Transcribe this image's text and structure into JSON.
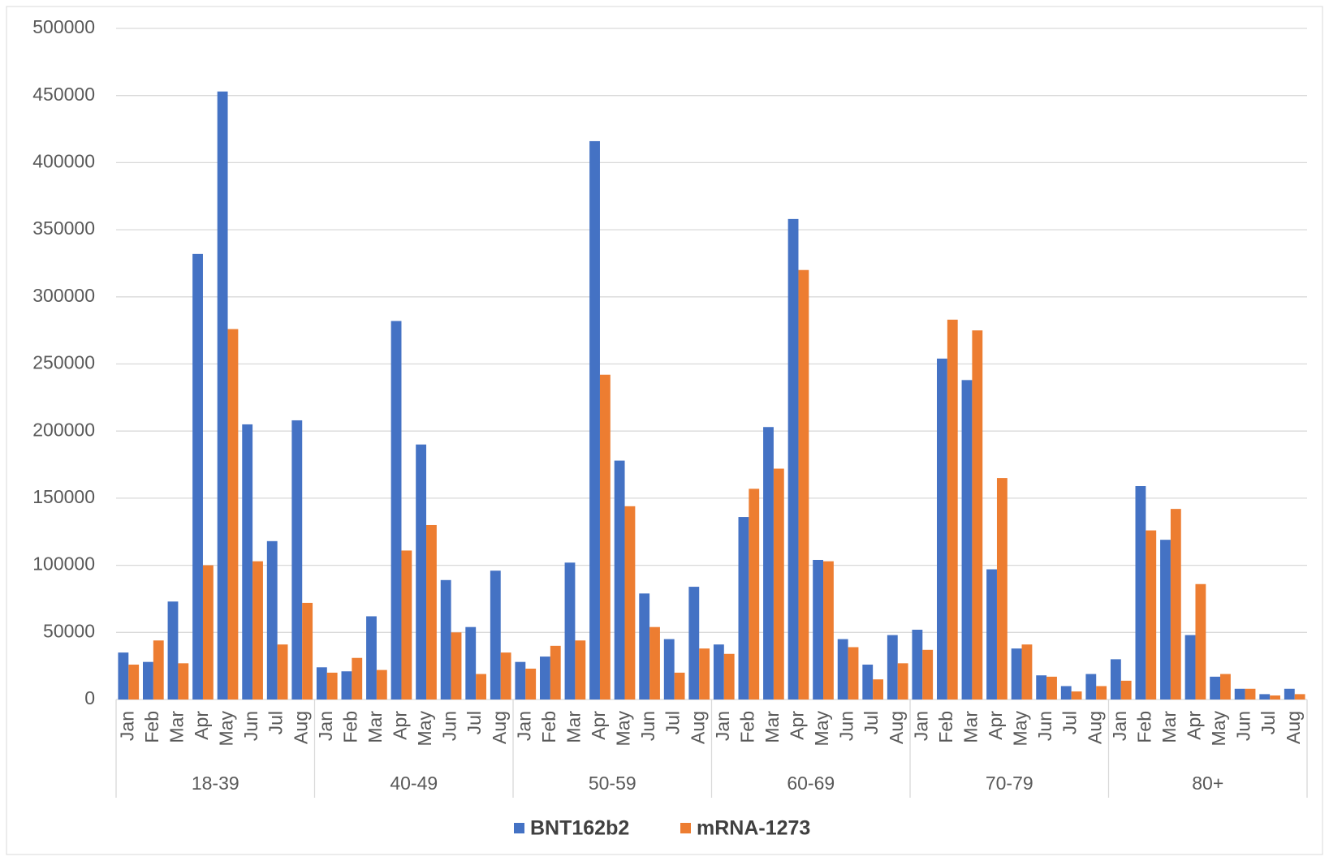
{
  "chart_data": {
    "type": "bar",
    "categories": [
      "Jan",
      "Feb",
      "Mar",
      "Apr",
      "May",
      "Jun",
      "Jul",
      "Aug",
      "Jan",
      "Feb",
      "Mar",
      "Apr",
      "May",
      "Jun",
      "Jul",
      "Aug",
      "Jan",
      "Feb",
      "Mar",
      "Apr",
      "May",
      "Jun",
      "Jul",
      "Aug",
      "Jan",
      "Feb",
      "Mar",
      "Apr",
      "May",
      "Jun",
      "Jul",
      "Aug",
      "Jan",
      "Feb",
      "Mar",
      "Apr",
      "May",
      "Jun",
      "Jul",
      "Aug",
      "Jan",
      "Feb",
      "Mar",
      "Apr",
      "May",
      "Jun",
      "Jul",
      "Aug"
    ],
    "groups": [
      "18-39",
      "40-49",
      "50-59",
      "60-69",
      "70-79",
      "80+"
    ],
    "series": [
      {
        "name": "BNT162b2",
        "color": "#4472c4",
        "values": [
          35000,
          28000,
          73000,
          332000,
          453000,
          205000,
          118000,
          208000,
          24000,
          21000,
          62000,
          282000,
          190000,
          89000,
          54000,
          96000,
          28000,
          32000,
          102000,
          416000,
          178000,
          79000,
          45000,
          84000,
          41000,
          136000,
          203000,
          358000,
          104000,
          45000,
          26000,
          48000,
          52000,
          254000,
          238000,
          97000,
          38000,
          18000,
          10000,
          19000,
          30000,
          159000,
          119000,
          48000,
          17000,
          8000,
          4000,
          8000
        ]
      },
      {
        "name": "mRNA-1273",
        "color": "#ed7d31",
        "values": [
          26000,
          44000,
          27000,
          100000,
          276000,
          103000,
          41000,
          72000,
          20000,
          31000,
          22000,
          111000,
          130000,
          50000,
          19000,
          35000,
          23000,
          40000,
          44000,
          242000,
          144000,
          54000,
          20000,
          38000,
          34000,
          157000,
          172000,
          320000,
          103000,
          39000,
          15000,
          27000,
          37000,
          283000,
          275000,
          165000,
          41000,
          17000,
          6000,
          10000,
          14000,
          126000,
          142000,
          86000,
          19000,
          8000,
          3000,
          4000
        ]
      }
    ],
    "ylim": [
      0,
      500000
    ],
    "yticks": [
      0,
      50000,
      100000,
      150000,
      200000,
      250000,
      300000,
      350000,
      400000,
      450000,
      500000
    ],
    "grid": true,
    "legend": "bottom"
  }
}
